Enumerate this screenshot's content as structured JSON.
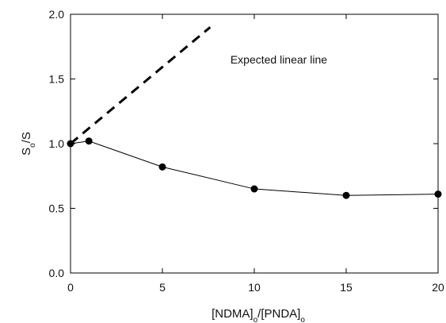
{
  "chart_data": {
    "type": "line",
    "title": "",
    "xlabel": "[NDMA]o/[PNDA]o",
    "ylabel": "So/S",
    "xlim": [
      0,
      20
    ],
    "ylim": [
      0.0,
      2.0
    ],
    "x_ticks": [
      0,
      5,
      10,
      15,
      20
    ],
    "y_ticks": [
      0.0,
      0.5,
      1.0,
      1.5,
      2.0
    ],
    "x_tick_labels": [
      "0",
      "5",
      "10",
      "15",
      "20"
    ],
    "y_tick_labels": [
      "0.0",
      "0.5",
      "1.0",
      "1.5",
      "2.0"
    ],
    "grid": false,
    "series": [
      {
        "x": [
          0,
          1,
          5,
          10,
          15,
          20
        ],
        "values": [
          1.0,
          1.02,
          0.82,
          0.65,
          0.6,
          0.61
        ],
        "style": "solid",
        "marker": "circle",
        "color": "#000000"
      },
      {
        "x": [
          0,
          7.6
        ],
        "values": [
          1.0,
          1.9
        ],
        "style": "dashed",
        "marker": "none",
        "color": "#000000"
      }
    ],
    "annotations": [
      {
        "text": "Expected linear line",
        "x": 8.7,
        "y": 1.62
      }
    ]
  }
}
